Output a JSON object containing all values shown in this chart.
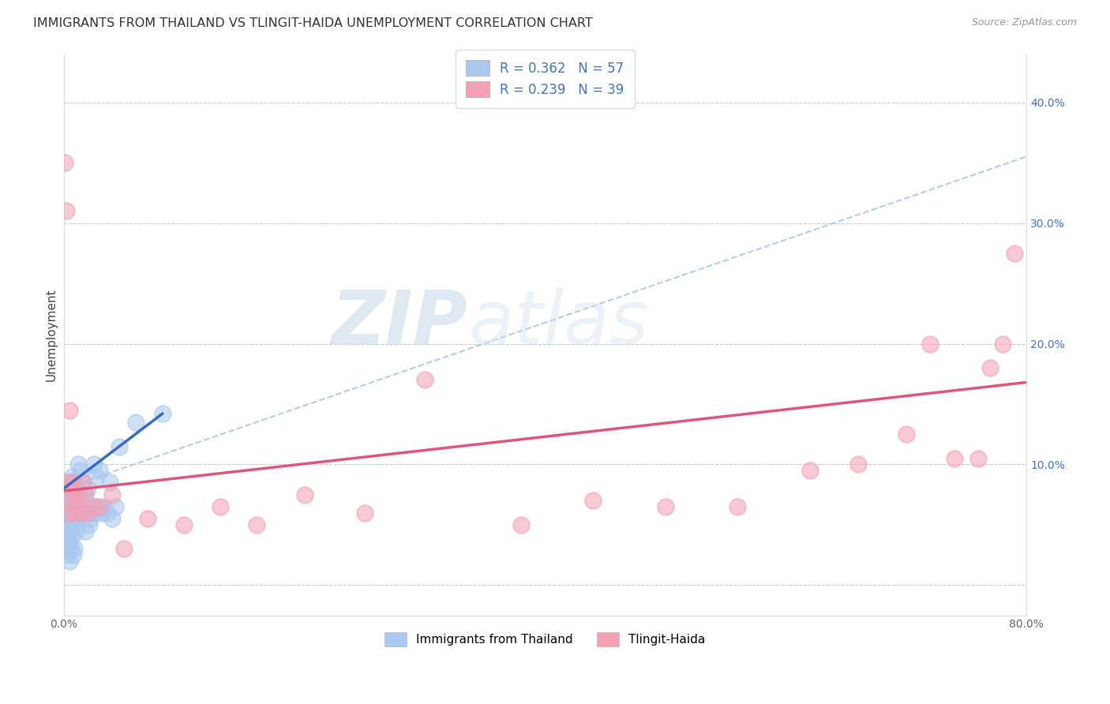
{
  "title": "IMMIGRANTS FROM THAILAND VS TLINGIT-HAIDA UNEMPLOYMENT CORRELATION CHART",
  "source": "Source: ZipAtlas.com",
  "xlabel_blue": "Immigrants from Thailand",
  "xlabel_pink": "Tlingit-Haida",
  "ylabel": "Unemployment",
  "xlim": [
    0,
    0.8
  ],
  "ylim": [
    -0.025,
    0.44
  ],
  "xticks": [
    0.0,
    0.1,
    0.2,
    0.3,
    0.4,
    0.5,
    0.6,
    0.7,
    0.8
  ],
  "xticklabels": [
    "0.0%",
    "",
    "",
    "",
    "",
    "",
    "",
    "",
    "80.0%"
  ],
  "yticks": [
    0.0,
    0.1,
    0.2,
    0.3,
    0.4
  ],
  "ytick_right_labels": [
    "",
    "10.0%",
    "20.0%",
    "30.0%",
    "40.0%"
  ],
  "ytick_left_labels": [
    "",
    "",
    "",
    "",
    ""
  ],
  "blue_R": 0.362,
  "blue_N": 57,
  "pink_R": 0.239,
  "pink_N": 39,
  "blue_color": "#a8c8f0",
  "blue_line_color": "#3a6abf",
  "pink_color": "#f4a0b5",
  "pink_line_color": "#e0557a",
  "dashed_line_color": "#aac4e0",
  "watermark_zip": "ZIP",
  "watermark_atlas": "atlas",
  "blue_line_x0": 0.0,
  "blue_line_y0": 0.08,
  "blue_line_x1": 0.082,
  "blue_line_y1": 0.142,
  "dashed_line_x0": 0.0,
  "dashed_line_y0": 0.08,
  "dashed_line_x1": 0.8,
  "dashed_line_y1": 0.355,
  "pink_line_x0": 0.0,
  "pink_line_y0": 0.078,
  "pink_line_x1": 0.8,
  "pink_line_y1": 0.168,
  "blue_scatter_x": [
    0.001,
    0.001,
    0.002,
    0.002,
    0.002,
    0.003,
    0.003,
    0.003,
    0.003,
    0.004,
    0.004,
    0.004,
    0.005,
    0.005,
    0.005,
    0.005,
    0.006,
    0.006,
    0.006,
    0.007,
    0.007,
    0.007,
    0.008,
    0.008,
    0.008,
    0.009,
    0.009,
    0.01,
    0.01,
    0.011,
    0.012,
    0.013,
    0.014,
    0.015,
    0.016,
    0.017,
    0.018,
    0.019,
    0.02,
    0.021,
    0.022,
    0.023,
    0.024,
    0.025,
    0.026,
    0.027,
    0.028,
    0.03,
    0.032,
    0.034,
    0.036,
    0.038,
    0.04,
    0.043,
    0.046,
    0.06,
    0.082
  ],
  "blue_scatter_y": [
    0.065,
    0.045,
    0.075,
    0.06,
    0.03,
    0.08,
    0.055,
    0.04,
    0.025,
    0.07,
    0.05,
    0.035,
    0.085,
    0.06,
    0.045,
    0.02,
    0.075,
    0.055,
    0.03,
    0.09,
    0.065,
    0.04,
    0.085,
    0.06,
    0.025,
    0.055,
    0.03,
    0.08,
    0.05,
    0.045,
    0.1,
    0.07,
    0.095,
    0.085,
    0.06,
    0.075,
    0.045,
    0.065,
    0.08,
    0.05,
    0.055,
    0.06,
    0.065,
    0.1,
    0.06,
    0.09,
    0.065,
    0.095,
    0.06,
    0.065,
    0.06,
    0.085,
    0.055,
    0.065,
    0.115,
    0.135,
    0.142
  ],
  "pink_scatter_x": [
    0.001,
    0.002,
    0.003,
    0.004,
    0.005,
    0.006,
    0.007,
    0.008,
    0.009,
    0.01,
    0.012,
    0.014,
    0.016,
    0.018,
    0.02,
    0.025,
    0.03,
    0.04,
    0.05,
    0.07,
    0.1,
    0.13,
    0.16,
    0.2,
    0.25,
    0.3,
    0.38,
    0.44,
    0.5,
    0.56,
    0.62,
    0.66,
    0.7,
    0.72,
    0.74,
    0.76,
    0.77,
    0.78,
    0.79
  ],
  "pink_scatter_y": [
    0.35,
    0.31,
    0.085,
    0.06,
    0.145,
    0.08,
    0.07,
    0.085,
    0.06,
    0.07,
    0.075,
    0.06,
    0.085,
    0.075,
    0.06,
    0.065,
    0.065,
    0.075,
    0.03,
    0.055,
    0.05,
    0.065,
    0.05,
    0.075,
    0.06,
    0.17,
    0.05,
    0.07,
    0.065,
    0.065,
    0.095,
    0.1,
    0.125,
    0.2,
    0.105,
    0.105,
    0.18,
    0.2,
    0.275
  ]
}
